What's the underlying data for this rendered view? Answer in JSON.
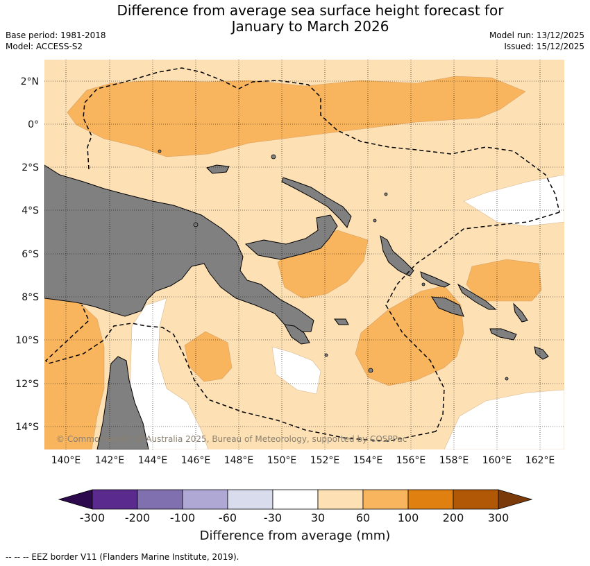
{
  "title_line1": "Difference from average sea surface height forecast for",
  "title_line2": "January to March 2026",
  "base_period": "Base period: 1981-2018",
  "model": "Model: ACCESS-S2",
  "model_run": "Model run: 13/12/2025",
  "issued": "Issued: 15/12/2025",
  "copyright": "© Commonwealth of Australia 2025, Bureau of Meteorology, supported by COSPPac",
  "lat_labels": [
    "2°N",
    "0°",
    "2°S",
    "4°S",
    "6°S",
    "8°S",
    "10°S",
    "12°S",
    "14°S"
  ],
  "lon_labels": [
    "140°E",
    "142°E",
    "144°E",
    "146°E",
    "148°E",
    "150°E",
    "152°E",
    "154°E",
    "156°E",
    "158°E",
    "160°E",
    "162°E"
  ],
  "colorbar": {
    "ticks": [
      "-300",
      "-200",
      "-100",
      "-60",
      "-30",
      "30",
      "60",
      "100",
      "200",
      "300"
    ],
    "label": "Difference from average (mm)",
    "colors": [
      "#2d0a4e",
      "#5a2a8e",
      "#8070b0",
      "#b0a8d4",
      "#d8dcec",
      "#ffffff",
      "#fde0b4",
      "#f9b45e",
      "#e08010",
      "#b05806",
      "#7a3a0a"
    ]
  },
  "legend_note": "--  --  -- EEZ border V11 (Flanders Marine Institute, 2019).",
  "colors": {
    "land": "#808080",
    "anomaly_30_60": "#fde0b4",
    "anomaly_60_100": "#f9b45e",
    "neutral": "#ffffff"
  }
}
